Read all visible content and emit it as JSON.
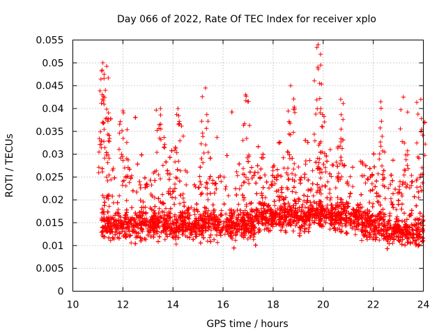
{
  "chart_data": {
    "type": "scatter",
    "title": "Day 066 of 2022, Rate Of TEC Index for receiver xplo",
    "xlabel": "GPS time / hours",
    "ylabel": "ROTI / TECUs",
    "xlim": [
      10,
      24
    ],
    "ylim": [
      0,
      0.055
    ],
    "xticks": [
      10,
      12,
      14,
      16,
      18,
      20,
      22,
      24
    ],
    "yticks": [
      0,
      0.005,
      0.01,
      0.015,
      0.02,
      0.025,
      0.03,
      0.035,
      0.04,
      0.045,
      0.05,
      0.055
    ],
    "xtick_labels": [
      "10",
      "12",
      "14",
      "16",
      "18",
      "20",
      "22",
      "24"
    ],
    "ytick_labels": [
      "0",
      "0.005",
      "0.01",
      "0.015",
      "0.02",
      "0.025",
      "0.03",
      "0.035",
      "0.04",
      "0.045",
      "0.05",
      "0.055"
    ],
    "grid": true,
    "marker": "+",
    "series": [
      {
        "name": "ROTI",
        "color": "#ff0000",
        "x_range": [
          11.15,
          24.0
        ],
        "typical_range": [
          0.006,
          0.03
        ],
        "peaks": [
          {
            "x": 11.2,
            "y": 0.05
          },
          {
            "x": 11.25,
            "y": 0.0475
          },
          {
            "x": 11.3,
            "y": 0.044
          },
          {
            "x": 12.0,
            "y": 0.0395
          },
          {
            "x": 13.5,
            "y": 0.04
          },
          {
            "x": 14.2,
            "y": 0.04
          },
          {
            "x": 15.3,
            "y": 0.0445
          },
          {
            "x": 16.9,
            "y": 0.043
          },
          {
            "x": 18.7,
            "y": 0.045
          },
          {
            "x": 19.8,
            "y": 0.054
          },
          {
            "x": 19.9,
            "y": 0.0495
          },
          {
            "x": 20.7,
            "y": 0.042
          },
          {
            "x": 22.3,
            "y": 0.0415
          },
          {
            "x": 23.2,
            "y": 0.0425
          },
          {
            "x": 23.9,
            "y": 0.042
          }
        ]
      }
    ]
  }
}
